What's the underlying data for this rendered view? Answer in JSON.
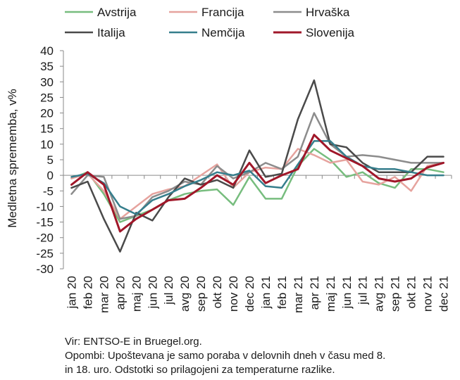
{
  "chart_data": {
    "type": "line",
    "ylabel": "Medletna sprememba, v%",
    "ylim": [
      -30,
      40
    ],
    "yticks": [
      40,
      35,
      30,
      25,
      20,
      15,
      10,
      5,
      0,
      -5,
      -10,
      -15,
      -20,
      -25,
      -30
    ],
    "grid": false,
    "legend_position": "top",
    "categories": [
      "jan 20",
      "feb 20",
      "mar 20",
      "apr 20",
      "maj 20",
      "jun 20",
      "jul 20",
      "avg 20",
      "sep 20",
      "okt 20",
      "nov 20",
      "dec 20",
      "jan 21",
      "feb 21",
      "mar 21",
      "apr 21",
      "maj 21",
      "jun 21",
      "jul 21",
      "avg 21",
      "sep 21",
      "okt 21",
      "nov 21",
      "dec 21"
    ],
    "series": [
      {
        "name": "Avstrija",
        "color": "#77bd7e",
        "values": [
          -1,
          1,
          -6,
          -15,
          -13,
          -11,
          -8,
          -6,
          -5,
          -4.5,
          -9.5,
          -0.5,
          -7.5,
          -7.5,
          3,
          8.5,
          5,
          -0.5,
          1,
          -2.5,
          -4,
          2,
          2,
          1
        ]
      },
      {
        "name": "Francija",
        "color": "#e6a39e",
        "values": [
          -1,
          0.5,
          -5,
          -14,
          -10,
          -6,
          -4.5,
          -3.5,
          0,
          3.5,
          -4,
          1,
          2.5,
          2,
          8.5,
          6.5,
          4,
          5,
          -2,
          -3,
          -0.5,
          -5,
          3,
          4
        ]
      },
      {
        "name": "Hrvaška",
        "color": "#8c8c8c",
        "values": [
          -6,
          0,
          -0.5,
          -14,
          -13,
          -7,
          -5,
          -2,
          -3,
          3,
          -1,
          1,
          4,
          2,
          6,
          20,
          10,
          6,
          6.5,
          6,
          5,
          4,
          4,
          4
        ]
      },
      {
        "name": "Italija",
        "color": "#4a4a4a",
        "values": [
          -4,
          -2,
          -14,
          -24.5,
          -12,
          -14.5,
          -7,
          -1,
          -3,
          -1.5,
          -4,
          8,
          -0.5,
          0.5,
          18,
          30.5,
          10,
          9,
          4,
          1,
          1,
          1,
          6,
          6
        ]
      },
      {
        "name": "Nemčija",
        "color": "#357e8c",
        "values": [
          -0.5,
          0.5,
          -2.5,
          -10,
          -12.5,
          -8,
          -6,
          -3.5,
          -1.5,
          1,
          0,
          1.5,
          -3.5,
          -4,
          3.5,
          11,
          11,
          6,
          3,
          2,
          2,
          1,
          0,
          0
        ]
      },
      {
        "name": "Slovenija",
        "color": "#a01729",
        "values": [
          -3,
          1,
          -3,
          -18,
          -14,
          -11,
          -8,
          -7.5,
          -4,
          0,
          -3,
          4,
          -2.5,
          0,
          2,
          13,
          8,
          5.5,
          3,
          -1,
          -2,
          -1,
          2.5,
          4
        ]
      }
    ]
  },
  "source": "Vir: ENTSO-E in Bruegel.org.",
  "note_line1": "Opombi: Upoštevana je samo poraba v delovnih dneh v času med 8.",
  "note_line2": "in 18. uro. Odstotki so prilagojeni za temperaturne razlike."
}
